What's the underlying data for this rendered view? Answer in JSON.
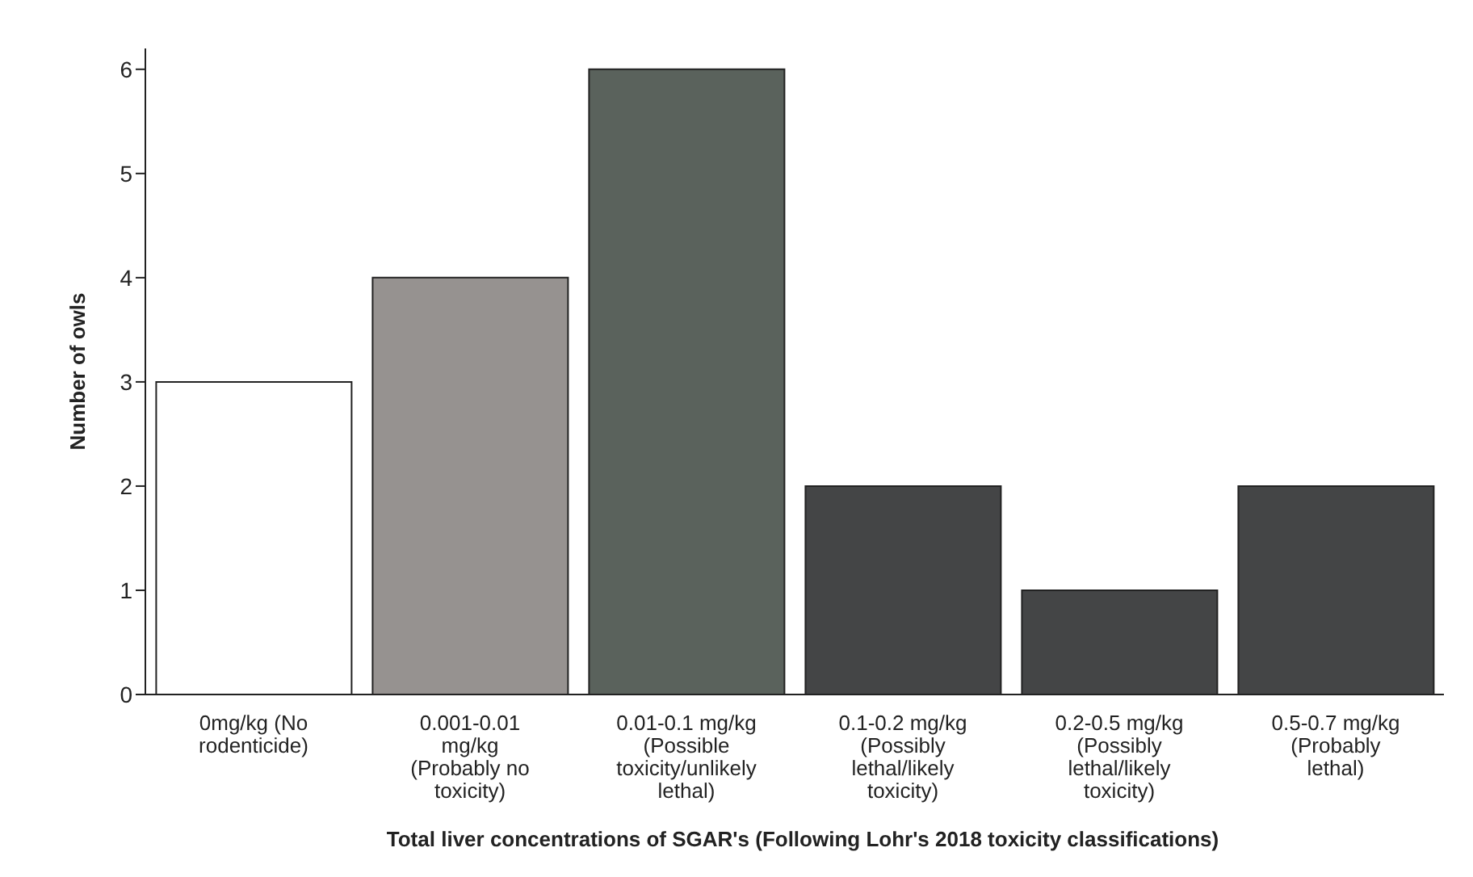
{
  "chart_data": {
    "type": "bar",
    "xlabel": "Total liver concentrations of SGAR's (Following Lohr's 2018 toxicity classifications)",
    "ylabel": "Number of owls",
    "categories": [
      "0mg/kg (No rodenticide)",
      "0.001-0.01 mg/kg (Probably no toxicity)",
      "0.01-0.1 mg/kg (Possible toxicity/unlikely lethal)",
      "0.1-0.2 mg/kg (Possibly lethal/likely toxicity)",
      "0.2-0.5 mg/kg (Possibly lethal/likely toxicity)",
      "0.5-0.7 mg/kg (Probably lethal)"
    ],
    "values": [
      3,
      4,
      6,
      2,
      1,
      2
    ],
    "colors": [
      "#ffffff",
      "#969290",
      "#5a625c",
      "#444546",
      "#444546",
      "#444546"
    ],
    "ylim": [
      0,
      6.2
    ],
    "yticks": [
      0,
      1,
      2,
      3,
      4,
      5,
      6
    ],
    "grid": false,
    "legend": false
  }
}
